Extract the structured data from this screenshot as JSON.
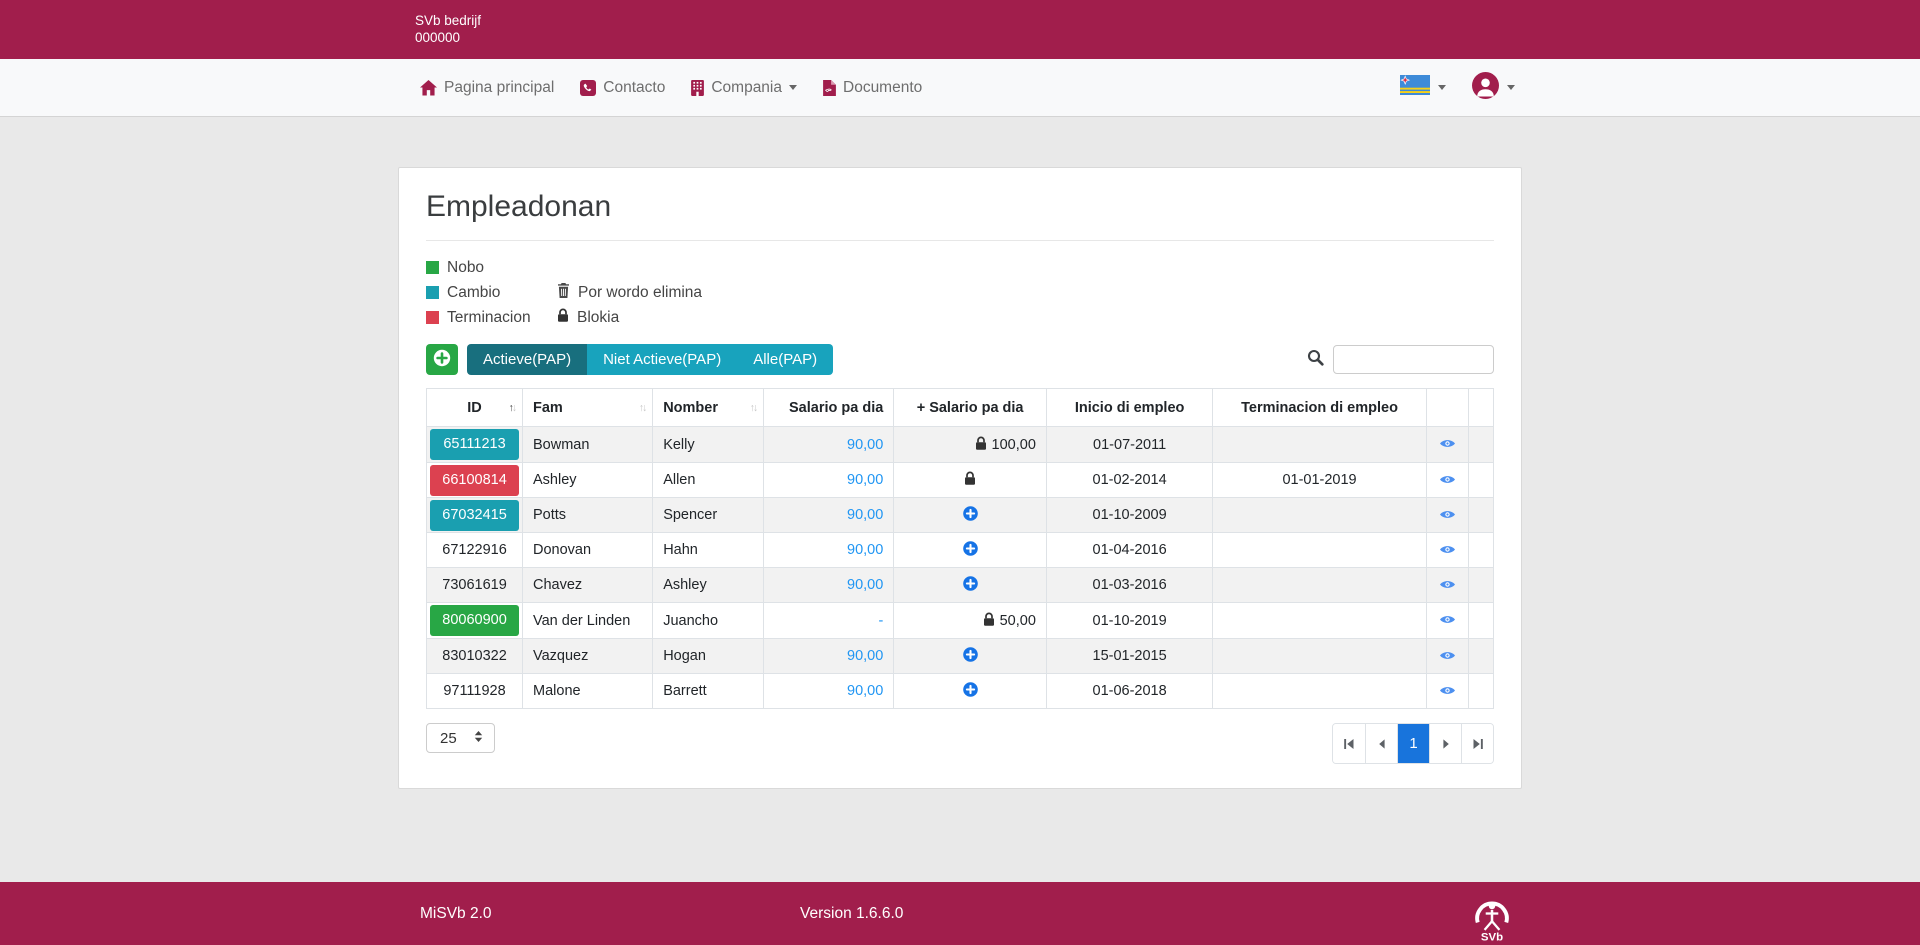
{
  "colors": {
    "crimson": "#A11E4C",
    "teal": "#1A9FB0",
    "green": "#28A745",
    "red": "#DC4150",
    "tab_active": "#186F7E",
    "tab_inactive": "#18A3BD",
    "link_blue": "#2196F3",
    "icon_blue": "#1673E6",
    "eye_blue": "#4D90F0",
    "pg_active": "#1874DC"
  },
  "header": {
    "brand_line1": "SVb bedrijf",
    "brand_line2": "000000"
  },
  "nav": {
    "items": [
      {
        "label": "Pagina principal",
        "icon": "home-icon",
        "dropdown": false
      },
      {
        "label": "Contacto",
        "icon": "phone-icon",
        "dropdown": false
      },
      {
        "label": "Compania",
        "icon": "building-icon",
        "dropdown": true
      },
      {
        "label": "Documento",
        "icon": "pdf-icon",
        "dropdown": false
      }
    ],
    "language_flag": "aruba-flag",
    "user_menu_icon": "user-icon"
  },
  "main": {
    "title": "Empleadonan",
    "legend": {
      "status_items": [
        {
          "label": "Nobo",
          "status": "nobo"
        },
        {
          "label": "Cambio",
          "status": "cambio"
        },
        {
          "label": "Terminacion",
          "status": "terminacion"
        }
      ],
      "icon_items": [
        {
          "label": "Por wordo elimina",
          "icon": "trash-icon"
        },
        {
          "label": "Blokia",
          "icon": "lock-icon"
        }
      ]
    },
    "toolbar": {
      "filter_tabs": [
        {
          "label": "Actieve(PAP)",
          "active": true
        },
        {
          "label": "Niet Actieve(PAP)",
          "active": false
        },
        {
          "label": "Alle(PAP)",
          "active": false
        }
      ],
      "search_value": ""
    },
    "table": {
      "columns": [
        {
          "label": "ID",
          "sortable": true,
          "sort": "asc"
        },
        {
          "label": "Fam",
          "sortable": true,
          "sort": null
        },
        {
          "label": "Nomber",
          "sortable": true,
          "sort": null
        },
        {
          "label": "Salario pa dia",
          "sortable": false
        },
        {
          "label": "+ Salario pa dia",
          "sortable": false
        },
        {
          "label": "Inicio di empleo",
          "sortable": false
        },
        {
          "label": "Terminacion di empleo",
          "sortable": false
        },
        {
          "label": "",
          "sortable": false
        },
        {
          "label": "",
          "sortable": false
        }
      ],
      "rows": [
        {
          "id": "65111213",
          "id_status": "cambio",
          "fam": "Bowman",
          "nomber": "Kelly",
          "salario": "90,00",
          "extra": {
            "type": "lock-value",
            "value": "100,00"
          },
          "inicio": "01-07-2011",
          "terminacion": ""
        },
        {
          "id": "66100814",
          "id_status": "terminacion",
          "fam": "Ashley",
          "nomber": "Allen",
          "salario": "90,00",
          "extra": {
            "type": "lock",
            "value": ""
          },
          "inicio": "01-02-2014",
          "terminacion": "01-01-2019"
        },
        {
          "id": "67032415",
          "id_status": "cambio",
          "fam": "Potts",
          "nomber": "Spencer",
          "salario": "90,00",
          "extra": {
            "type": "add",
            "value": ""
          },
          "inicio": "01-10-2009",
          "terminacion": ""
        },
        {
          "id": "67122916",
          "id_status": "none",
          "fam": "Donovan",
          "nomber": "Hahn",
          "salario": "90,00",
          "extra": {
            "type": "add",
            "value": ""
          },
          "inicio": "01-04-2016",
          "terminacion": ""
        },
        {
          "id": "73061619",
          "id_status": "none",
          "fam": "Chavez",
          "nomber": "Ashley",
          "salario": "90,00",
          "extra": {
            "type": "add",
            "value": ""
          },
          "inicio": "01-03-2016",
          "terminacion": ""
        },
        {
          "id": "80060900",
          "id_status": "nobo",
          "fam": "Van der Linden",
          "nomber": "Juancho",
          "salario": "-",
          "extra": {
            "type": "lock-value",
            "value": "50,00"
          },
          "inicio": "01-10-2019",
          "terminacion": ""
        },
        {
          "id": "83010322",
          "id_status": "none",
          "fam": "Vazquez",
          "nomber": "Hogan",
          "salario": "90,00",
          "extra": {
            "type": "add",
            "value": ""
          },
          "inicio": "15-01-2015",
          "terminacion": ""
        },
        {
          "id": "97111928",
          "id_status": "none",
          "fam": "Malone",
          "nomber": "Barrett",
          "salario": "90,00",
          "extra": {
            "type": "add",
            "value": ""
          },
          "inicio": "01-06-2018",
          "terminacion": ""
        }
      ]
    },
    "pagination": {
      "page_size": "25",
      "current_page": "1"
    }
  },
  "footer": {
    "app_name": "MiSVb 2.0",
    "version": "Version 1.6.6.0",
    "logo_text": "SVb"
  }
}
